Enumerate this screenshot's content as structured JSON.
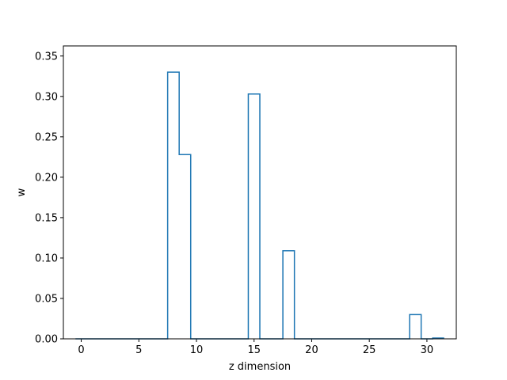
{
  "chart_data": {
    "type": "bar",
    "style": "step-histogram",
    "xlabel": "z dimension",
    "ylabel": "w",
    "xlim": [
      -1.55,
      32.55
    ],
    "ylim": [
      0,
      0.3625
    ],
    "grid": false,
    "x_ticks": [
      0,
      5,
      10,
      15,
      20,
      25,
      30
    ],
    "x_tick_labels": [
      "0",
      "5",
      "10",
      "15",
      "20",
      "25",
      "30"
    ],
    "y_ticks": [
      0,
      0.05,
      0.1,
      0.15,
      0.2,
      0.25,
      0.3,
      0.35
    ],
    "y_tick_labels": [
      "0.00",
      "0.05",
      "0.10",
      "0.15",
      "0.20",
      "0.25",
      "0.30",
      "0.35"
    ],
    "x": [
      0,
      1,
      2,
      3,
      4,
      5,
      6,
      7,
      8,
      9,
      10,
      11,
      12,
      13,
      14,
      15,
      16,
      17,
      18,
      19,
      20,
      21,
      22,
      23,
      24,
      25,
      26,
      27,
      28,
      29,
      30,
      31
    ],
    "values": [
      0,
      0,
      0,
      0,
      0,
      0,
      0,
      0,
      0.33,
      0.228,
      0,
      0,
      0,
      0,
      0,
      0.303,
      0,
      0,
      0.109,
      0,
      0,
      0,
      0,
      0,
      0,
      0,
      0,
      0,
      0,
      0.03,
      0,
      0.001
    ],
    "colors": {
      "line": "#1f77b4",
      "axis": "#000000"
    }
  }
}
